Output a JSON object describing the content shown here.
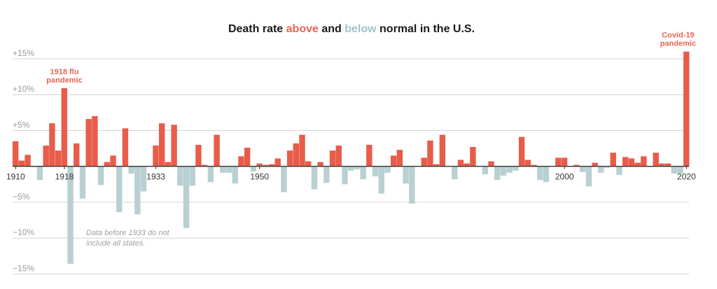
{
  "title": {
    "prefix": "Death rate ",
    "above": "above",
    "middle": " and ",
    "below": "below",
    "suffix": " normal in the U.S."
  },
  "colors": {
    "above": "#e85c4a",
    "below": "#b9d0d3",
    "axis": "#333333",
    "grid": "#d4d4d4"
  },
  "chart_data": {
    "type": "bar",
    "title": "Death rate above and below normal in the U.S.",
    "xlabel": "",
    "ylabel": "",
    "ylim": [
      -15,
      16
    ],
    "y_ticks": [
      15,
      10,
      5,
      -5,
      -10,
      -15
    ],
    "y_tick_labels": [
      "+15%",
      "+10%",
      "+5%",
      "−5%",
      "−10%",
      "−15%"
    ],
    "x_ticks": [
      1910,
      1918,
      1933,
      1950,
      2000,
      2020
    ],
    "x_tick_labels": [
      "1910",
      "1918",
      "1933",
      "1950",
      "2000",
      "2020"
    ],
    "grid": true,
    "legend": "in-title",
    "x": [
      1910,
      1911,
      1912,
      1913,
      1914,
      1915,
      1916,
      1917,
      1918,
      1919,
      1920,
      1921,
      1922,
      1923,
      1924,
      1925,
      1926,
      1927,
      1928,
      1929,
      1930,
      1931,
      1932,
      1933,
      1934,
      1935,
      1936,
      1937,
      1938,
      1939,
      1940,
      1941,
      1942,
      1943,
      1944,
      1945,
      1946,
      1947,
      1948,
      1949,
      1950,
      1951,
      1952,
      1953,
      1954,
      1955,
      1956,
      1957,
      1958,
      1959,
      1960,
      1961,
      1962,
      1963,
      1964,
      1965,
      1966,
      1967,
      1968,
      1969,
      1970,
      1971,
      1972,
      1973,
      1974,
      1975,
      1976,
      1977,
      1978,
      1979,
      1980,
      1981,
      1982,
      1983,
      1984,
      1985,
      1986,
      1987,
      1988,
      1989,
      1990,
      1991,
      1992,
      1993,
      1994,
      1995,
      1996,
      1997,
      1998,
      1999,
      2000,
      2001,
      2002,
      2003,
      2004,
      2005,
      2006,
      2007,
      2008,
      2009,
      2010,
      2011,
      2012,
      2013,
      2014,
      2015,
      2016,
      2017,
      2018,
      2019,
      2020
    ],
    "values": [
      3.5,
      0.8,
      1.6,
      -0.1,
      -1.9,
      2.9,
      6.0,
      2.2,
      10.9,
      -13.6,
      3.2,
      -4.5,
      6.6,
      7.0,
      -2.6,
      0.6,
      1.5,
      -6.4,
      5.3,
      -1.0,
      -6.7,
      -3.5,
      0,
      2.9,
      6.0,
      0.6,
      5.8,
      -2.7,
      -8.6,
      -2.7,
      3.0,
      0.2,
      -2.2,
      4.4,
      -0.9,
      -0.9,
      -2.4,
      1.4,
      2.6,
      -0.7,
      0.4,
      0.2,
      0.3,
      1.1,
      -3.6,
      2.2,
      3.2,
      4.4,
      0.7,
      -3.2,
      0.6,
      -2.3,
      2.2,
      2.9,
      -2.5,
      -0.6,
      -0.4,
      -1.8,
      3.0,
      -1.4,
      -3.8,
      -0.9,
      1.5,
      2.3,
      -2.4,
      -5.2,
      0,
      1.2,
      3.6,
      0.3,
      4.4,
      0,
      -1.8,
      0.9,
      0.4,
      2.7,
      0,
      -1.1,
      0.7,
      -1.9,
      -1.3,
      -0.9,
      -0.6,
      4.1,
      0.9,
      0.2,
      -1.9,
      -2.2,
      0,
      1.2,
      1.2,
      0,
      0.2,
      -0.8,
      -2.8,
      0.5,
      -0.9,
      -0.2,
      1.9,
      -1.2,
      1.3,
      1.1,
      0.5,
      1.4,
      -0.1,
      1.9,
      0.4,
      0.4,
      -1.0,
      -1.0,
      16.0
    ],
    "annotations": [
      {
        "year": 1918,
        "lines": [
          "1918 flu",
          "pandemic"
        ]
      },
      {
        "year": 2020,
        "lines": [
          "Covid-19",
          "pandemic"
        ]
      }
    ],
    "note": [
      "Data before 1933 do not",
      "include all states."
    ]
  }
}
